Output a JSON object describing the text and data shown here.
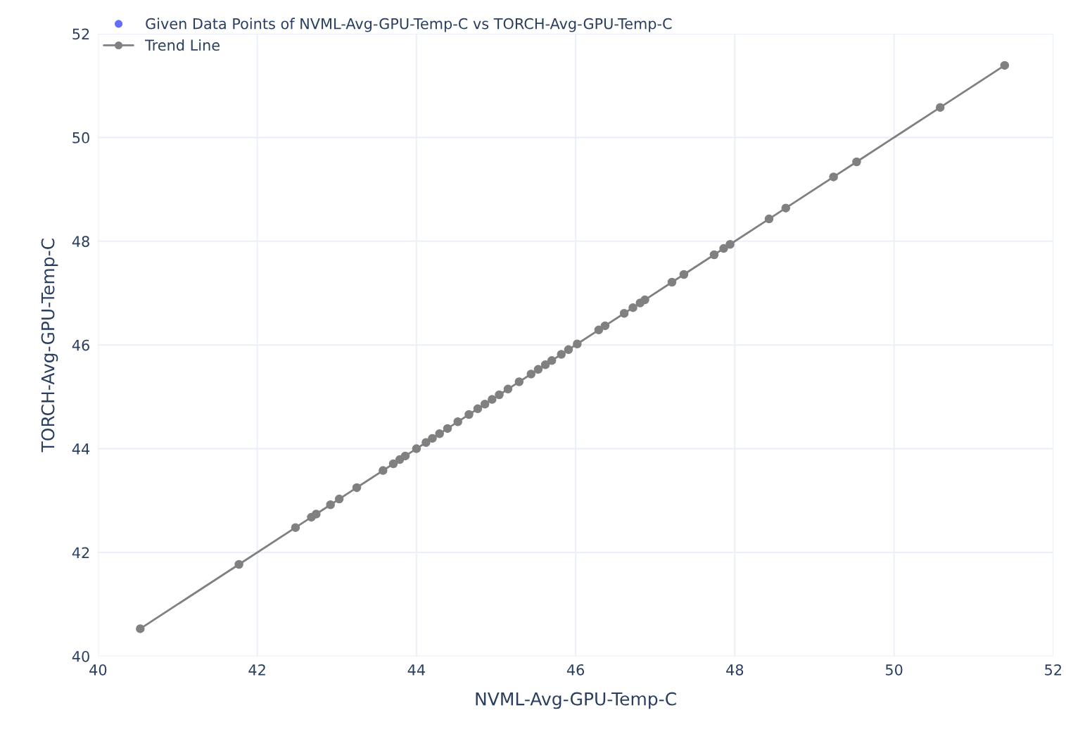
{
  "chart_data": {
    "type": "scatter",
    "xlabel": "NVML-Avg-GPU-Temp-C",
    "ylabel": "TORCH-Avg-GPU-Temp-C",
    "xlim": [
      40,
      52
    ],
    "ylim": [
      40,
      52
    ],
    "xticks": [
      40,
      42,
      44,
      46,
      48,
      50,
      52
    ],
    "yticks": [
      40,
      42,
      44,
      46,
      48,
      50,
      52
    ],
    "grid": true,
    "legend": "top left",
    "marker": "circle",
    "series": [
      {
        "name": "Given Data Points of NVML-Avg-GPU-Temp-C vs TORCH-Avg-GPU-Temp-C",
        "color": "#636efa"
      },
      {
        "name": "Trend Line",
        "type": "line",
        "color": "#808080",
        "x": [
          40.53,
          41.77,
          42.48,
          42.68,
          42.74,
          42.92,
          43.03,
          43.25,
          43.58,
          43.71,
          43.79,
          43.86,
          44.0,
          44.12,
          44.2,
          44.29,
          44.39,
          44.52,
          44.66,
          44.77,
          44.86,
          44.95,
          45.04,
          45.15,
          45.29,
          45.44,
          45.53,
          45.62,
          45.7,
          45.82,
          45.91,
          46.02,
          46.29,
          46.37,
          46.61,
          46.72,
          46.81,
          46.87,
          47.21,
          47.36,
          47.74,
          47.86,
          47.94,
          48.43,
          48.64,
          49.24,
          49.53,
          50.58,
          51.39
        ],
        "values": [
          40.53,
          41.77,
          42.48,
          42.68,
          42.74,
          42.92,
          43.03,
          43.25,
          43.58,
          43.71,
          43.79,
          43.86,
          44.0,
          44.12,
          44.2,
          44.29,
          44.39,
          44.52,
          44.66,
          44.77,
          44.86,
          44.95,
          45.04,
          45.15,
          45.29,
          45.44,
          45.53,
          45.62,
          45.7,
          45.82,
          45.91,
          46.02,
          46.29,
          46.37,
          46.61,
          46.72,
          46.81,
          46.87,
          47.21,
          47.36,
          47.74,
          47.86,
          47.94,
          48.43,
          48.64,
          49.24,
          49.53,
          50.58,
          51.39
        ]
      }
    ]
  }
}
